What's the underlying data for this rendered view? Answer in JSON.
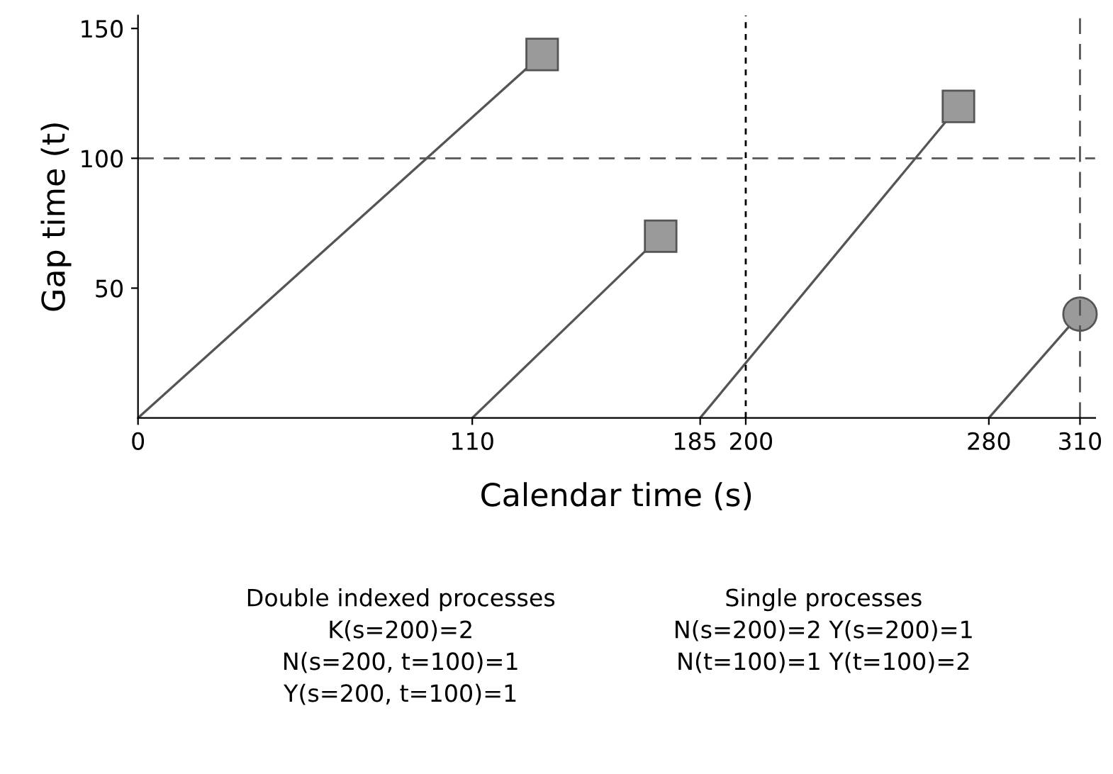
{
  "chart_data": {
    "type": "line",
    "xlabel": "Calendar time (s)",
    "ylabel": "Gap time (t)",
    "xlim": [
      0,
      315
    ],
    "ylim": [
      0,
      155
    ],
    "xticks": [
      0,
      110,
      185,
      200,
      280,
      310
    ],
    "yticks": [
      50,
      100,
      150
    ],
    "series": [
      {
        "x": [
          0,
          133
        ],
        "values": [
          0,
          140
        ],
        "color": "#555555",
        "marker": "square"
      },
      {
        "x": [
          110,
          172
        ],
        "values": [
          0,
          70
        ],
        "color": "#555555",
        "marker": "square"
      },
      {
        "x": [
          185,
          270
        ],
        "values": [
          0,
          120
        ],
        "color": "#555555",
        "marker": "square"
      },
      {
        "x": [
          280,
          310
        ],
        "values": [
          0,
          40
        ],
        "color": "#555555",
        "marker": "circle"
      }
    ],
    "ref_lines": [
      {
        "axis": "y",
        "value": 100,
        "line_style": "dashed",
        "color": "#555555"
      },
      {
        "axis": "x",
        "value": 200,
        "line_style": "dotted",
        "color": "#000000"
      },
      {
        "axis": "x",
        "value": 310,
        "line_style": "dashed",
        "color": "#555555"
      }
    ],
    "annotations": [
      "Double indexed processes\nK(s=200)=2\nN(s=200, t=100)=1\nY(s=200, t=100)=1",
      "Single processes\nN(s=200)=2 Y(s=200)=1\nN(t=100)=1 Y(t=100)=2"
    ]
  }
}
